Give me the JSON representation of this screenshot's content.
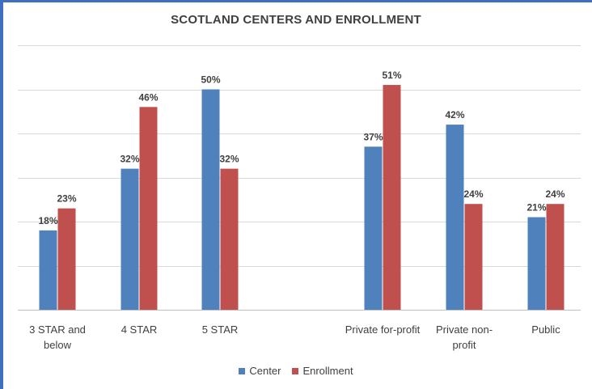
{
  "chart_data": {
    "type": "bar",
    "title": "SCOTLAND CENTERS AND ENROLLMENT",
    "categories": [
      [
        "3 STAR and",
        "below"
      ],
      [
        "4 STAR"
      ],
      [
        "5 STAR"
      ],
      [
        "Private for-profit"
      ],
      [
        "Private non-",
        "profit"
      ],
      [
        "Public"
      ]
    ],
    "series": [
      {
        "name": "Center",
        "color": "#4f81bd",
        "values": [
          18,
          32,
          50,
          37,
          42,
          21
        ]
      },
      {
        "name": "Enrollment",
        "color": "#c0504d",
        "values": [
          23,
          46,
          32,
          51,
          24,
          24
        ]
      }
    ],
    "value_suffix": "%",
    "ylim": [
      0,
      60
    ],
    "grid": true,
    "legend_position": "bottom"
  }
}
